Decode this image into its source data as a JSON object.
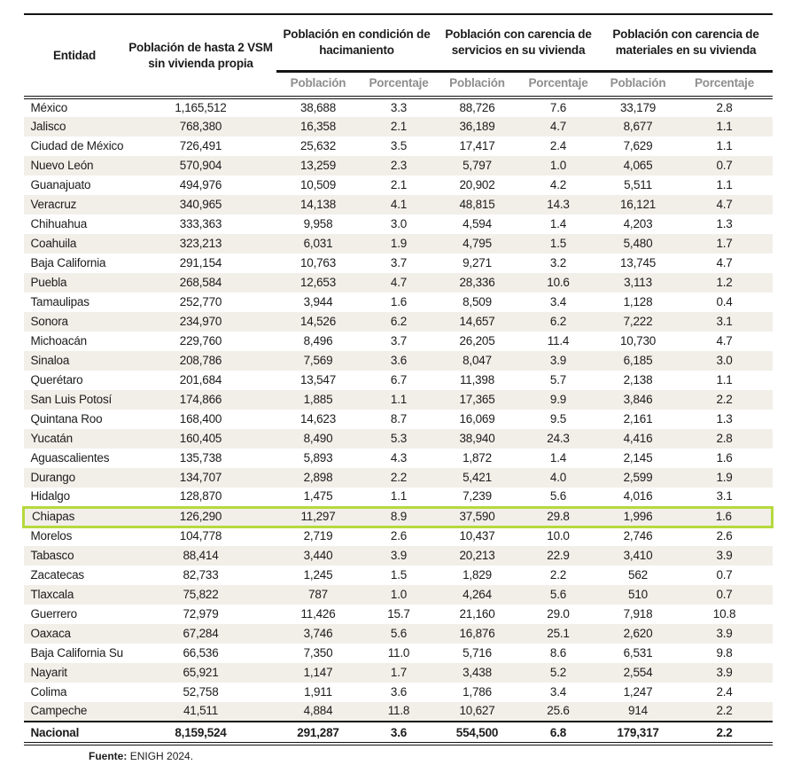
{
  "chart_data": {
    "type": "table",
    "column_groups": [
      {
        "label": "Entidad",
        "span": 1
      },
      {
        "label": "Población de hasta 2 VSM sin vivienda propia",
        "span": 1
      },
      {
        "label": "Población en condición de hacimaniento",
        "span": 2
      },
      {
        "label": "Población con carencia de servicios en su vivienda",
        "span": 2
      },
      {
        "label": "Población con carencia de materiales en su vivienda",
        "span": 2
      }
    ],
    "sub_headers": [
      "Población",
      "Porcentaje",
      "Población",
      "Porcentaje",
      "Población",
      "Porcentaje"
    ],
    "rows": [
      [
        "México",
        "1,165,512",
        "38,688",
        "3.3",
        "88,726",
        "7.6",
        "33,179",
        "2.8"
      ],
      [
        "Jalisco",
        "768,380",
        "16,358",
        "2.1",
        "36,189",
        "4.7",
        "8,677",
        "1.1"
      ],
      [
        "Ciudad de México",
        "726,491",
        "25,632",
        "3.5",
        "17,417",
        "2.4",
        "7,629",
        "1.1"
      ],
      [
        "Nuevo León",
        "570,904",
        "13,259",
        "2.3",
        "5,797",
        "1.0",
        "4,065",
        "0.7"
      ],
      [
        "Guanajuato",
        "494,976",
        "10,509",
        "2.1",
        "20,902",
        "4.2",
        "5,511",
        "1.1"
      ],
      [
        "Veracruz",
        "340,965",
        "14,138",
        "4.1",
        "48,815",
        "14.3",
        "16,121",
        "4.7"
      ],
      [
        "Chihuahua",
        "333,363",
        "9,958",
        "3.0",
        "4,594",
        "1.4",
        "4,203",
        "1.3"
      ],
      [
        "Coahuila",
        "323,213",
        "6,031",
        "1.9",
        "4,795",
        "1.5",
        "5,480",
        "1.7"
      ],
      [
        "Baja California",
        "291,154",
        "10,763",
        "3.7",
        "9,271",
        "3.2",
        "13,745",
        "4.7"
      ],
      [
        "Puebla",
        "268,584",
        "12,653",
        "4.7",
        "28,336",
        "10.6",
        "3,113",
        "1.2"
      ],
      [
        "Tamaulipas",
        "252,770",
        "3,944",
        "1.6",
        "8,509",
        "3.4",
        "1,128",
        "0.4"
      ],
      [
        "Sonora",
        "234,970",
        "14,526",
        "6.2",
        "14,657",
        "6.2",
        "7,222",
        "3.1"
      ],
      [
        "Michoacán",
        "229,760",
        "8,496",
        "3.7",
        "26,205",
        "11.4",
        "10,730",
        "4.7"
      ],
      [
        "Sinaloa",
        "208,786",
        "7,569",
        "3.6",
        "8,047",
        "3.9",
        "6,185",
        "3.0"
      ],
      [
        "Querétaro",
        "201,684",
        "13,547",
        "6.7",
        "11,398",
        "5.7",
        "2,138",
        "1.1"
      ],
      [
        "San Luis Potosí",
        "174,866",
        "1,885",
        "1.1",
        "17,365",
        "9.9",
        "3,846",
        "2.2"
      ],
      [
        "Quintana Roo",
        "168,400",
        "14,623",
        "8.7",
        "16,069",
        "9.5",
        "2,161",
        "1.3"
      ],
      [
        "Yucatán",
        "160,405",
        "8,490",
        "5.3",
        "38,940",
        "24.3",
        "4,416",
        "2.8"
      ],
      [
        "Aguascalientes",
        "135,738",
        "5,893",
        "4.3",
        "1,872",
        "1.4",
        "2,145",
        "1.6"
      ],
      [
        "Durango",
        "134,707",
        "2,898",
        "2.2",
        "5,421",
        "4.0",
        "2,599",
        "1.9"
      ],
      [
        "Hidalgo",
        "128,870",
        "1,475",
        "1.1",
        "7,239",
        "5.6",
        "4,016",
        "3.1"
      ],
      [
        "Chiapas",
        "126,290",
        "11,297",
        "8.9",
        "37,590",
        "29.8",
        "1,996",
        "1.6"
      ],
      [
        "Morelos",
        "104,778",
        "2,719",
        "2.6",
        "10,437",
        "10.0",
        "2,746",
        "2.6"
      ],
      [
        "Tabasco",
        "88,414",
        "3,440",
        "3.9",
        "20,213",
        "22.9",
        "3,410",
        "3.9"
      ],
      [
        "Zacatecas",
        "82,733",
        "1,245",
        "1.5",
        "1,829",
        "2.2",
        "562",
        "0.7"
      ],
      [
        "Tlaxcala",
        "75,822",
        "787",
        "1.0",
        "4,264",
        "5.6",
        "510",
        "0.7"
      ],
      [
        "Guerrero",
        "72,979",
        "11,426",
        "15.7",
        "21,160",
        "29.0",
        "7,918",
        "10.8"
      ],
      [
        "Oaxaca",
        "67,284",
        "3,746",
        "5.6",
        "16,876",
        "25.1",
        "2,620",
        "3.9"
      ],
      [
        "Baja California Su",
        "66,536",
        "7,350",
        "11.0",
        "5,716",
        "8.6",
        "6,531",
        "9.8"
      ],
      [
        "Nayarit",
        "65,921",
        "1,147",
        "1.7",
        "3,438",
        "5.2",
        "2,554",
        "3.9"
      ],
      [
        "Colima",
        "52,758",
        "1,911",
        "3.6",
        "1,786",
        "3.4",
        "1,247",
        "2.4"
      ],
      [
        "Campeche",
        "41,511",
        "4,884",
        "11.8",
        "10,627",
        "25.6",
        "914",
        "2.2"
      ]
    ],
    "total_row": [
      "Nacional",
      "8,159,524",
      "291,287",
      "3.6",
      "554,500",
      "6.8",
      "179,317",
      "2.2"
    ],
    "highlighted_row": "Chiapas",
    "highlight_color": "#b5d93e",
    "alt_row_color": "#f2efe9",
    "source_label": "Fuente:",
    "source_text": "ENIGH 2024."
  }
}
